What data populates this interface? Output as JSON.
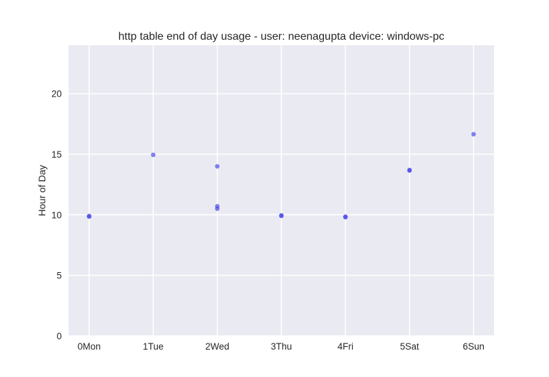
{
  "chart_data": {
    "type": "scatter",
    "title": "http table end of day usage -  user: neenagupta device: windows-pc",
    "xlabel": "",
    "ylabel": "Hour of Day",
    "x_ticks": [
      "0Mon",
      "1Tue",
      "2Wed",
      "3Thu",
      "4Fri",
      "5Sat",
      "6Sun"
    ],
    "y_ticks": [
      0,
      5,
      10,
      15,
      20
    ],
    "xlim": [
      -0.32,
      6.32
    ],
    "ylim": [
      0,
      24
    ],
    "grid": true,
    "point_color": "#4040e8",
    "background_color": "#eaeaf2",
    "grid_color": "#ffffff",
    "points": [
      {
        "x": 0,
        "y": 9.9
      },
      {
        "x": 0,
        "y": 9.85
      },
      {
        "x": 1,
        "y": 14.95
      },
      {
        "x": 2,
        "y": 14.0
      },
      {
        "x": 2,
        "y": 10.7
      },
      {
        "x": 2,
        "y": 10.5
      },
      {
        "x": 3,
        "y": 9.95
      },
      {
        "x": 3,
        "y": 9.9
      },
      {
        "x": 4,
        "y": 9.85
      },
      {
        "x": 4,
        "y": 9.8
      },
      {
        "x": 5,
        "y": 13.7
      },
      {
        "x": 5,
        "y": 13.65
      },
      {
        "x": 6,
        "y": 16.65
      }
    ]
  }
}
